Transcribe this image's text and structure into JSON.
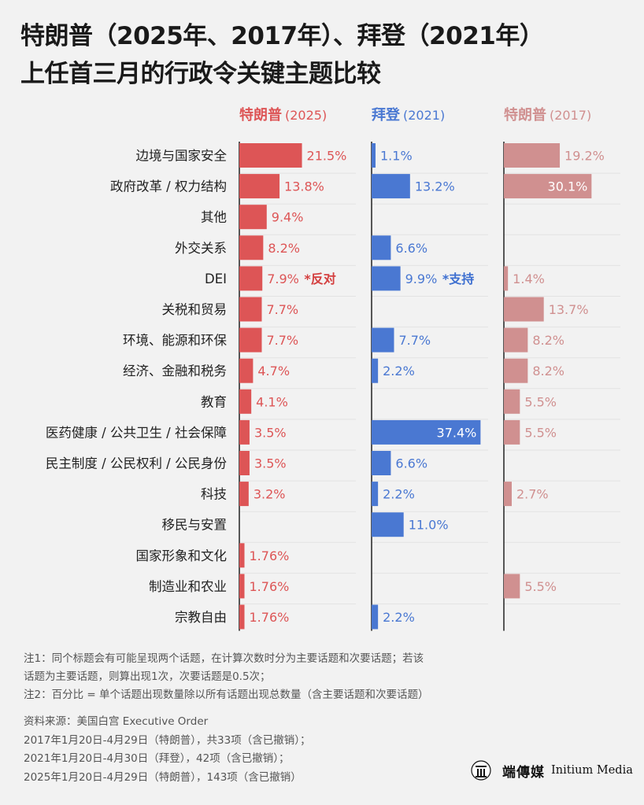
{
  "title": {
    "line1": "特朗普（2025年、2017年）、拜登（2021年）",
    "line2": "上任首三月的行政令关键主题比较"
  },
  "colors": {
    "trump2025": "#dd5556",
    "biden2021": "#4a78d2",
    "trump2017": "#d09090",
    "annotation_trump": "#d43f3f",
    "annotation_biden": "#3d6fd0"
  },
  "chart_data": {
    "type": "bar",
    "orientation": "horizontal",
    "categories": [
      "边境与国家安全",
      "政府改革 / 权力结构",
      "其他",
      "外交关系",
      "DEI",
      "关税和贸易",
      "环境、能源和环保",
      "经济、金融和税务",
      "教育",
      "医药健康 / 公共卫生 / 社会保障",
      "民主制度 / 公民权利 / 公民身份",
      "科技",
      "移民与安置",
      "国家形象和文化",
      "制造业和农业",
      "宗教自由"
    ],
    "series": [
      {
        "name": "特朗普",
        "year": "(2025)",
        "values": [
          21.5,
          13.8,
          9.4,
          8.2,
          7.9,
          7.7,
          7.7,
          4.7,
          4.1,
          3.5,
          3.5,
          3.2,
          null,
          1.76,
          1.76,
          1.76
        ],
        "labels": [
          "21.5%",
          "13.8%",
          "9.4%",
          "8.2%",
          "7.9%",
          "7.7%",
          "7.7%",
          "4.7%",
          "4.1%",
          "3.5%",
          "3.5%",
          "3.2%",
          "",
          "1.76%",
          "1.76%",
          "1.76%"
        ]
      },
      {
        "name": "拜登",
        "year": "(2021)",
        "values": [
          1.1,
          13.2,
          null,
          6.6,
          9.9,
          null,
          7.7,
          2.2,
          null,
          37.4,
          6.6,
          2.2,
          11.0,
          null,
          null,
          2.2
        ],
        "labels": [
          "1.1%",
          "13.2%",
          "",
          "6.6%",
          "9.9%",
          "",
          "7.7%",
          "2.2%",
          "",
          "37.4%",
          "6.6%",
          "2.2%",
          "11.0%",
          "",
          "",
          "2.2%"
        ]
      },
      {
        "name": "特朗普",
        "year": "(2017)",
        "values": [
          19.2,
          30.1,
          null,
          null,
          1.4,
          13.7,
          8.2,
          8.2,
          5.5,
          5.5,
          null,
          2.7,
          null,
          null,
          5.5,
          null
        ],
        "labels": [
          "19.2%",
          "30.1%",
          "",
          "",
          "1.4%",
          "13.7%",
          "8.2%",
          "8.2%",
          "5.5%",
          "5.5%",
          "",
          "2.7%",
          "",
          "",
          "5.5%",
          ""
        ]
      }
    ],
    "annotations": [
      {
        "series": 0,
        "category": "DEI",
        "text": "*反对"
      },
      {
        "series": 1,
        "category": "DEI",
        "text": "*支持"
      }
    ]
  },
  "notes": [
    "注1：同个标题会有可能呈现两个话题，在计算次数时分为主要话题和次要话题；若该",
    "话题为主要话题，则算出现1次，次要话题是0.5次；",
    "注2：百分比 = 单个话题出现数量除以所有话题出现总数量（含主要话题和次要话题）"
  ],
  "sources": [
    "资料来源：美国白宫 Executive Order",
    "2017年1月20日-4月29日（特朗普），共33项（含已撤销）；",
    "2021年1月20日-4月30日（拜登），42项（含已撤销）；",
    "2025年1月20日-4月29日（特朗普），143项（含已撤销）"
  ],
  "logo": {
    "mark_text": "端",
    "name_cn": "端傳媒",
    "name_en": "Initium Media"
  }
}
